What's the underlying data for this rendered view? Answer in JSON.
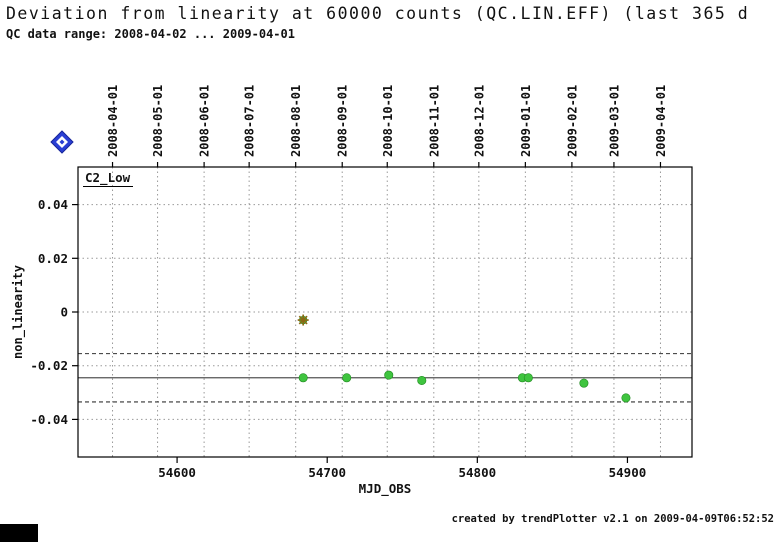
{
  "header": {
    "title": "Deviation from linearity at 60000 counts (QC.LIN.EFF) (last 365 d",
    "subtitle": "QC data range: 2008-04-02 ... 2009-04-01"
  },
  "footer": {
    "credit": "created by trendPlotter v2.1 on 2009-04-09T06:52:52"
  },
  "chart_data": {
    "type": "scatter",
    "panel_label": "C2_Low",
    "xlabel": "MJD_OBS",
    "ylabel": "non_linearity",
    "xlim": [
      54534,
      54943
    ],
    "ylim": [
      -0.054,
      0.054
    ],
    "x_ticks": [
      54600,
      54700,
      54800,
      54900
    ],
    "x_tick_labels": [
      "54600",
      "54700",
      "54800",
      "54900"
    ],
    "y_ticks": [
      0.04,
      0.02,
      0,
      -0.02,
      -0.04
    ],
    "y_tick_labels": [
      "0.04",
      "0.02",
      "0",
      "-0.02",
      "-0.04"
    ],
    "date_gridlines": [
      {
        "label": "2008-04-01",
        "mjd": 54557
      },
      {
        "label": "2008-05-01",
        "mjd": 54587
      },
      {
        "label": "2008-06-01",
        "mjd": 54618
      },
      {
        "label": "2008-07-01",
        "mjd": 54648
      },
      {
        "label": "2008-08-01",
        "mjd": 54679
      },
      {
        "label": "2008-09-01",
        "mjd": 54710
      },
      {
        "label": "2008-10-01",
        "mjd": 54740
      },
      {
        "label": "2008-11-01",
        "mjd": 54771
      },
      {
        "label": "2008-12-01",
        "mjd": 54801
      },
      {
        "label": "2009-01-01",
        "mjd": 54832
      },
      {
        "label": "2009-02-01",
        "mjd": 54863
      },
      {
        "label": "2009-03-01",
        "mjd": 54891
      },
      {
        "label": "2009-04-01",
        "mjd": 54922
      }
    ],
    "points": [
      {
        "mjd": 54684,
        "value": -0.0245
      },
      {
        "mjd": 54713,
        "value": -0.0245
      },
      {
        "mjd": 54741,
        "value": -0.0235
      },
      {
        "mjd": 54763,
        "value": -0.0255
      },
      {
        "mjd": 54830,
        "value": -0.0245
      },
      {
        "mjd": 54834,
        "value": -0.0245
      },
      {
        "mjd": 54871,
        "value": -0.0265
      },
      {
        "mjd": 54899,
        "value": -0.032
      }
    ],
    "outlier": {
      "mjd": 54684,
      "value": -0.003,
      "marker": "asterisk"
    },
    "avg_line": -0.0245,
    "threshold_lines": [
      -0.0155,
      -0.0335
    ],
    "grid": true,
    "colors": {
      "point": "#3fc43f",
      "point_edge": "#1f8a1f",
      "outlier_marker": "#8b6914",
      "avg_line": "#555555",
      "threshold_line": "#333333",
      "gridline": "#9a9a9a",
      "axis": "#000000",
      "diamond": "#2a3fd4",
      "diamond_inner": "#ffffff"
    }
  }
}
